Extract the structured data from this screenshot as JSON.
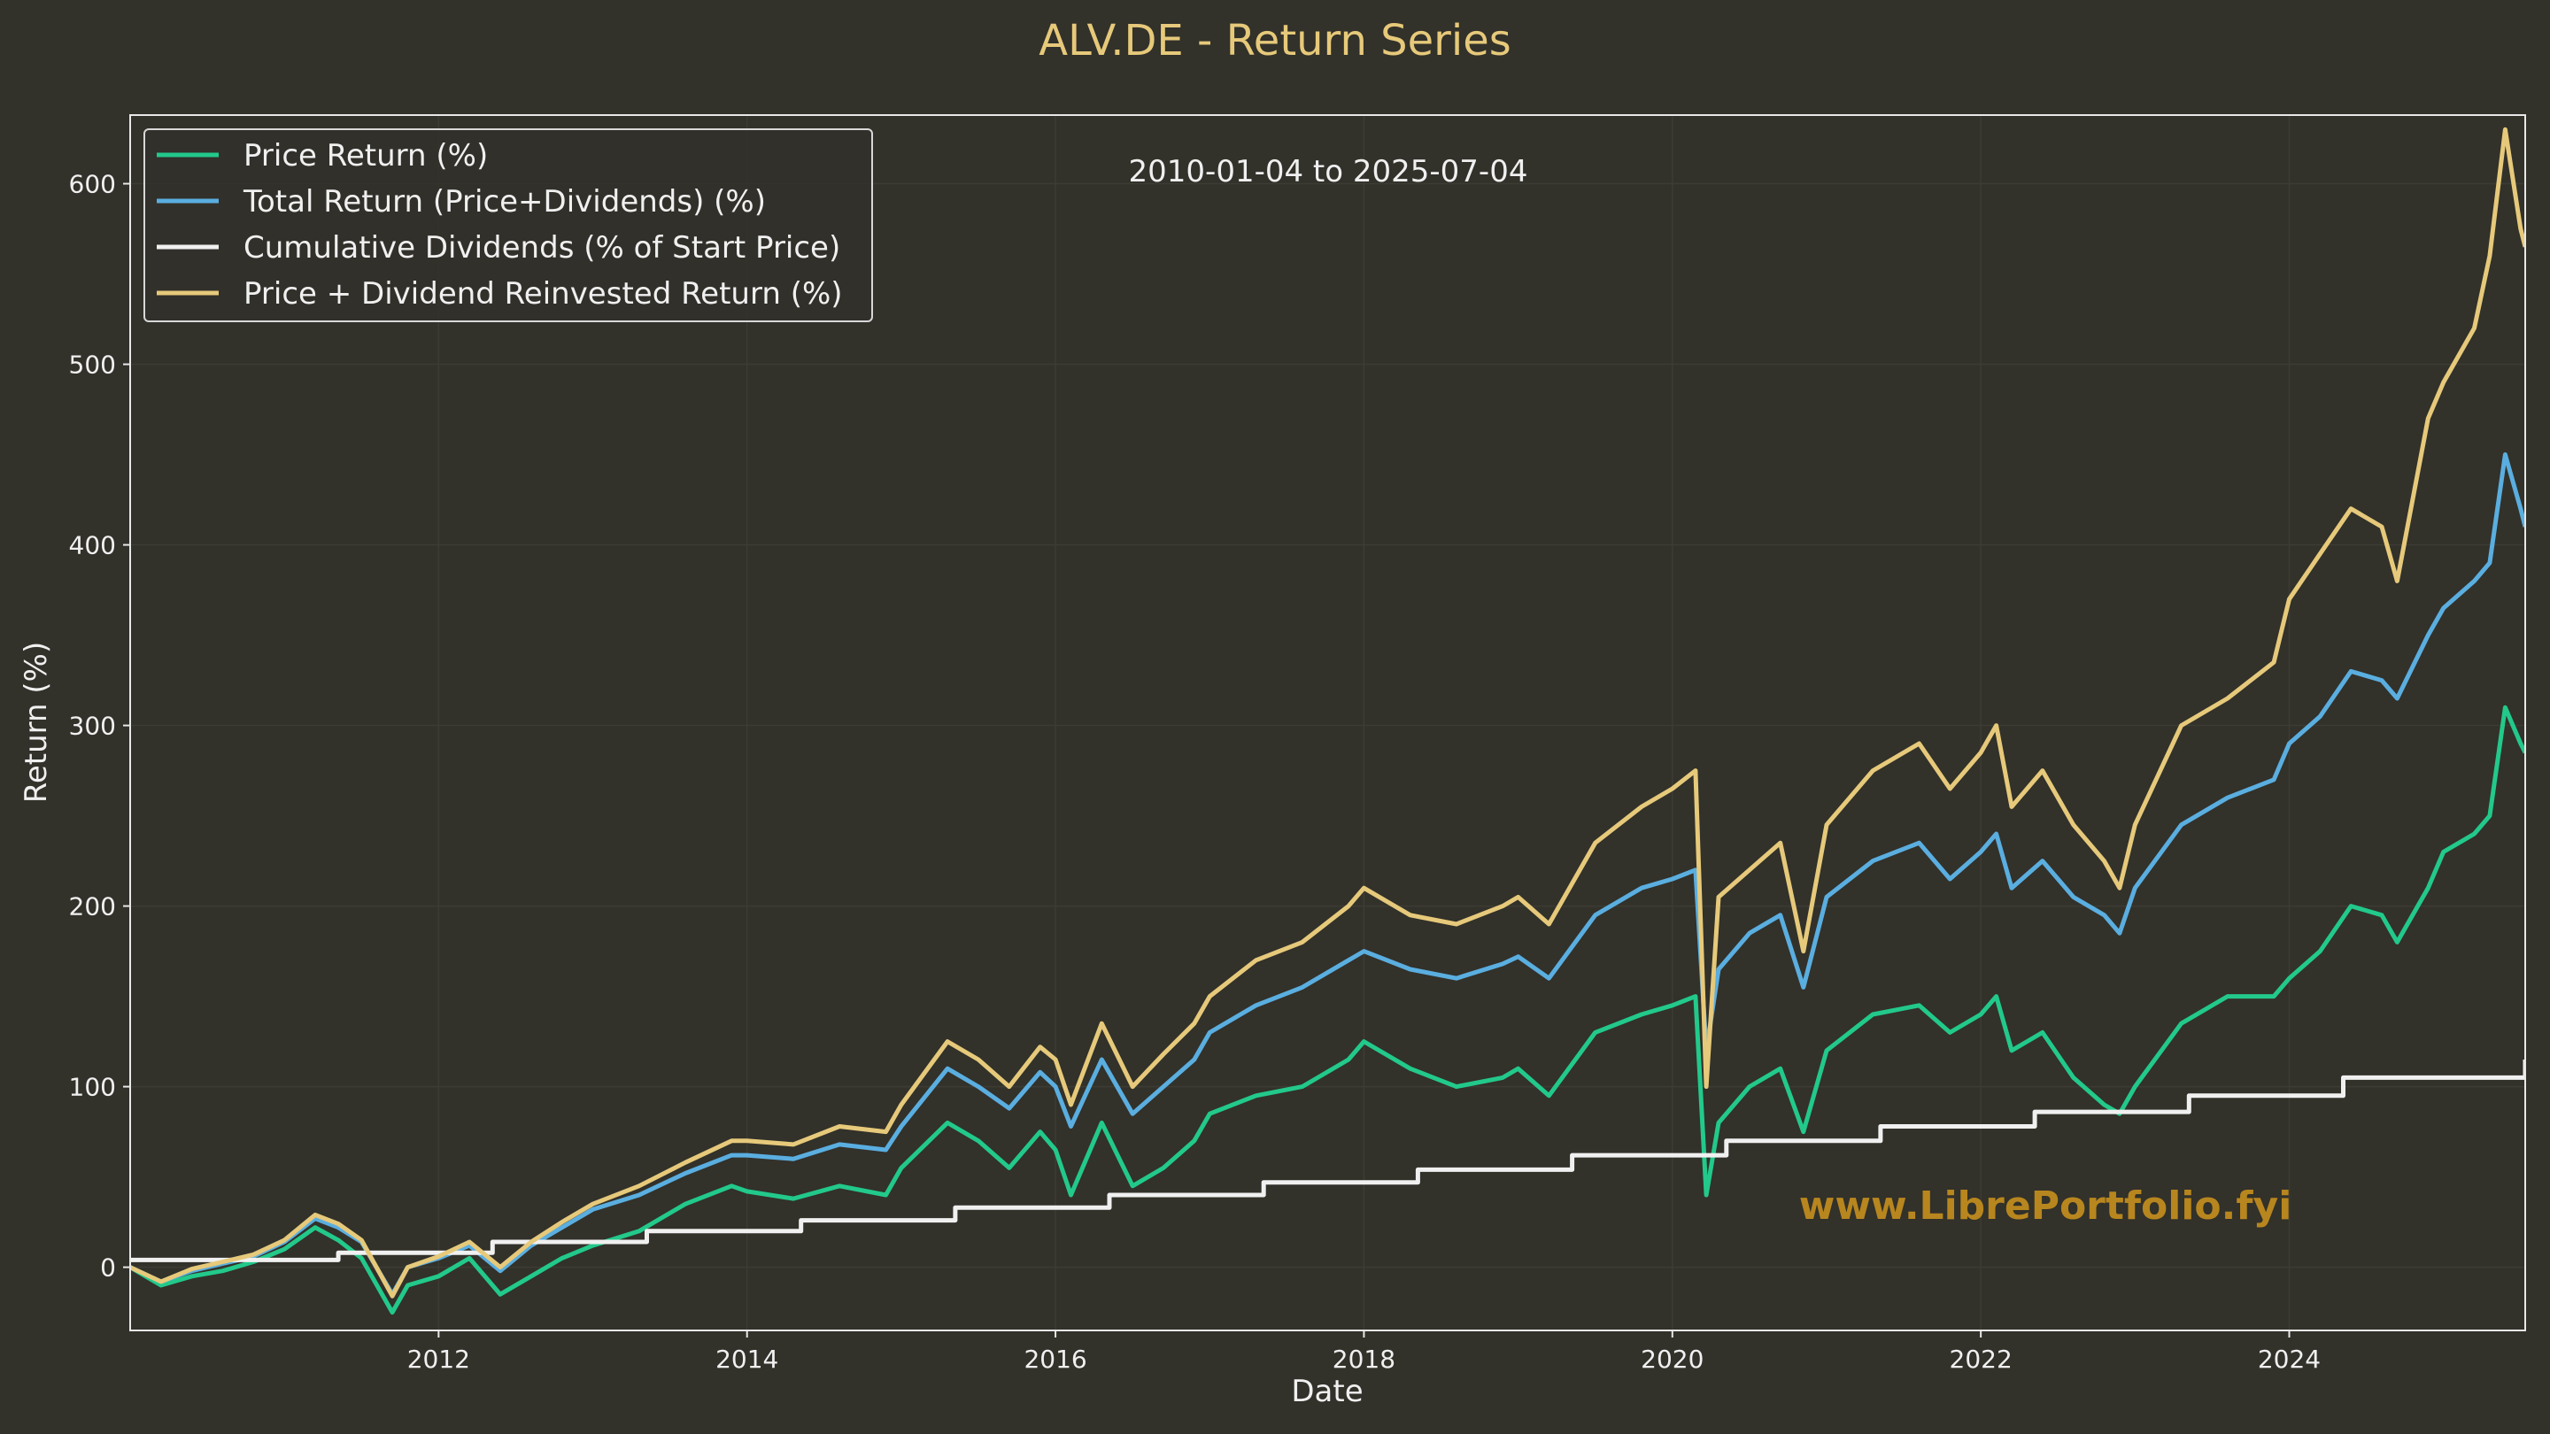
{
  "chart_data": {
    "type": "line",
    "title": "ALV.DE - Return Series",
    "xlabel": "Date",
    "ylabel": "Return (%)",
    "xlim": [
      2010.0,
      2025.53
    ],
    "ylim": [
      -35,
      638
    ],
    "grid": true,
    "legend_position": "top-left",
    "x_ticks": [
      2012,
      2014,
      2016,
      2018,
      2020,
      2022,
      2024
    ],
    "x_tick_labels": [
      "2012",
      "2014",
      "2016",
      "2018",
      "2020",
      "2022",
      "2024"
    ],
    "y_ticks": [
      0,
      100,
      200,
      300,
      400,
      500,
      600
    ],
    "y_tick_labels": [
      "0",
      "100",
      "200",
      "300",
      "400",
      "500",
      "600"
    ],
    "annotation": "2010-01-04 to 2025-07-04",
    "watermark": "www.LibrePortfolio.fyi",
    "colors": {
      "background": "#32312a",
      "title": "#e6c97a",
      "watermark": "#b8861e",
      "frame": "#e8e8e8",
      "grid": "#3d3c34"
    },
    "series": [
      {
        "name": "Price Return (%)",
        "color": "#22c98a",
        "x": [
          2010.0,
          2010.2,
          2010.4,
          2010.6,
          2010.8,
          2011.0,
          2011.2,
          2011.35,
          2011.5,
          2011.7,
          2011.8,
          2012.0,
          2012.2,
          2012.4,
          2012.6,
          2012.8,
          2013.0,
          2013.3,
          2013.6,
          2013.9,
          2014.0,
          2014.3,
          2014.6,
          2014.9,
          2015.0,
          2015.3,
          2015.5,
          2015.7,
          2015.9,
          2016.0,
          2016.1,
          2016.3,
          2016.5,
          2016.7,
          2016.9,
          2017.0,
          2017.3,
          2017.6,
          2017.9,
          2018.0,
          2018.3,
          2018.6,
          2018.9,
          2019.0,
          2019.2,
          2019.5,
          2019.8,
          2020.0,
          2020.15,
          2020.22,
          2020.3,
          2020.5,
          2020.7,
          2020.85,
          2021.0,
          2021.3,
          2021.6,
          2021.8,
          2022.0,
          2022.1,
          2022.2,
          2022.4,
          2022.6,
          2022.8,
          2022.9,
          2023.0,
          2023.3,
          2023.6,
          2023.9,
          2024.0,
          2024.2,
          2024.4,
          2024.6,
          2024.7,
          2024.9,
          2025.0,
          2025.2,
          2025.3,
          2025.4,
          2025.5,
          2025.53
        ],
        "values": [
          0,
          -10,
          -5,
          -2,
          3,
          10,
          22,
          15,
          5,
          -25,
          -10,
          -5,
          5,
          -15,
          -5,
          5,
          12,
          20,
          35,
          45,
          42,
          38,
          45,
          40,
          55,
          80,
          70,
          55,
          75,
          65,
          40,
          80,
          45,
          55,
          70,
          85,
          95,
          100,
          115,
          125,
          110,
          100,
          105,
          110,
          95,
          130,
          140,
          145,
          150,
          40,
          80,
          100,
          110,
          75,
          120,
          140,
          145,
          130,
          140,
          150,
          120,
          130,
          105,
          90,
          85,
          100,
          135,
          150,
          150,
          160,
          175,
          200,
          195,
          180,
          210,
          230,
          240,
          250,
          310,
          290,
          285
        ]
      },
      {
        "name": "Total Return (Price+Dividends) (%)",
        "color": "#5aaee0",
        "x": [
          2010.0,
          2010.2,
          2010.4,
          2010.6,
          2010.8,
          2011.0,
          2011.2,
          2011.35,
          2011.5,
          2011.7,
          2011.8,
          2012.0,
          2012.2,
          2012.4,
          2012.6,
          2012.8,
          2013.0,
          2013.3,
          2013.6,
          2013.9,
          2014.0,
          2014.3,
          2014.6,
          2014.9,
          2015.0,
          2015.3,
          2015.5,
          2015.7,
          2015.9,
          2016.0,
          2016.1,
          2016.3,
          2016.5,
          2016.7,
          2016.9,
          2017.0,
          2017.3,
          2017.6,
          2017.9,
          2018.0,
          2018.3,
          2018.6,
          2018.9,
          2019.0,
          2019.2,
          2019.5,
          2019.8,
          2020.0,
          2020.15,
          2020.22,
          2020.3,
          2020.5,
          2020.7,
          2020.85,
          2021.0,
          2021.3,
          2021.6,
          2021.8,
          2022.0,
          2022.1,
          2022.2,
          2022.4,
          2022.6,
          2022.8,
          2022.9,
          2023.0,
          2023.3,
          2023.6,
          2023.9,
          2024.0,
          2024.2,
          2024.4,
          2024.6,
          2024.7,
          2024.9,
          2025.0,
          2025.2,
          2025.3,
          2025.4,
          2025.5,
          2025.53
        ],
        "values": [
          0,
          -8,
          -2,
          2,
          6,
          14,
          27,
          22,
          14,
          -15,
          0,
          5,
          12,
          -2,
          12,
          22,
          32,
          40,
          52,
          62,
          62,
          60,
          68,
          65,
          78,
          110,
          100,
          88,
          108,
          100,
          78,
          115,
          85,
          100,
          115,
          130,
          145,
          155,
          170,
          175,
          165,
          160,
          168,
          172,
          160,
          195,
          210,
          215,
          220,
          120,
          165,
          185,
          195,
          155,
          205,
          225,
          235,
          215,
          230,
          240,
          210,
          225,
          205,
          195,
          185,
          210,
          245,
          260,
          270,
          290,
          305,
          330,
          325,
          315,
          350,
          365,
          380,
          390,
          450,
          420,
          410
        ]
      },
      {
        "name": "Cumulative Dividends (% of Start Price)",
        "color": "#f0f0f0",
        "step": true,
        "x": [
          2010.0,
          2011.35,
          2012.35,
          2013.35,
          2014.35,
          2015.35,
          2016.35,
          2017.35,
          2018.35,
          2019.35,
          2020.35,
          2021.35,
          2022.35,
          2023.35,
          2024.35,
          2025.53
        ],
        "values": [
          4,
          8,
          14,
          20,
          26,
          33,
          40,
          47,
          54,
          62,
          70,
          78,
          86,
          95,
          105,
          115
        ]
      },
      {
        "name": "Price + Dividend Reinvested Return (%)",
        "color": "#e6c97a",
        "x": [
          2010.0,
          2010.2,
          2010.4,
          2010.6,
          2010.8,
          2011.0,
          2011.2,
          2011.35,
          2011.5,
          2011.7,
          2011.8,
          2012.0,
          2012.2,
          2012.4,
          2012.6,
          2012.8,
          2013.0,
          2013.3,
          2013.6,
          2013.9,
          2014.0,
          2014.3,
          2014.6,
          2014.9,
          2015.0,
          2015.3,
          2015.5,
          2015.7,
          2015.9,
          2016.0,
          2016.1,
          2016.3,
          2016.5,
          2016.7,
          2016.9,
          2017.0,
          2017.3,
          2017.6,
          2017.9,
          2018.0,
          2018.3,
          2018.6,
          2018.9,
          2019.0,
          2019.2,
          2019.5,
          2019.8,
          2020.0,
          2020.15,
          2020.22,
          2020.3,
          2020.5,
          2020.7,
          2020.85,
          2021.0,
          2021.3,
          2021.6,
          2021.8,
          2022.0,
          2022.1,
          2022.2,
          2022.4,
          2022.6,
          2022.8,
          2022.9,
          2023.0,
          2023.3,
          2023.6,
          2023.9,
          2024.0,
          2024.2,
          2024.4,
          2024.6,
          2024.7,
          2024.9,
          2025.0,
          2025.2,
          2025.3,
          2025.4,
          2025.5,
          2025.53
        ],
        "values": [
          0,
          -8,
          -1,
          3,
          7,
          15,
          29,
          24,
          15,
          -16,
          0,
          6,
          14,
          0,
          14,
          25,
          35,
          45,
          58,
          70,
          70,
          68,
          78,
          75,
          90,
          125,
          115,
          100,
          122,
          115,
          90,
          135,
          100,
          118,
          135,
          150,
          170,
          180,
          200,
          210,
          195,
          190,
          200,
          205,
          190,
          235,
          255,
          265,
          275,
          100,
          205,
          220,
          235,
          175,
          245,
          275,
          290,
          265,
          285,
          300,
          255,
          275,
          245,
          225,
          210,
          245,
          300,
          315,
          335,
          370,
          395,
          420,
          410,
          380,
          470,
          490,
          520,
          560,
          630,
          575,
          565
        ]
      }
    ]
  }
}
